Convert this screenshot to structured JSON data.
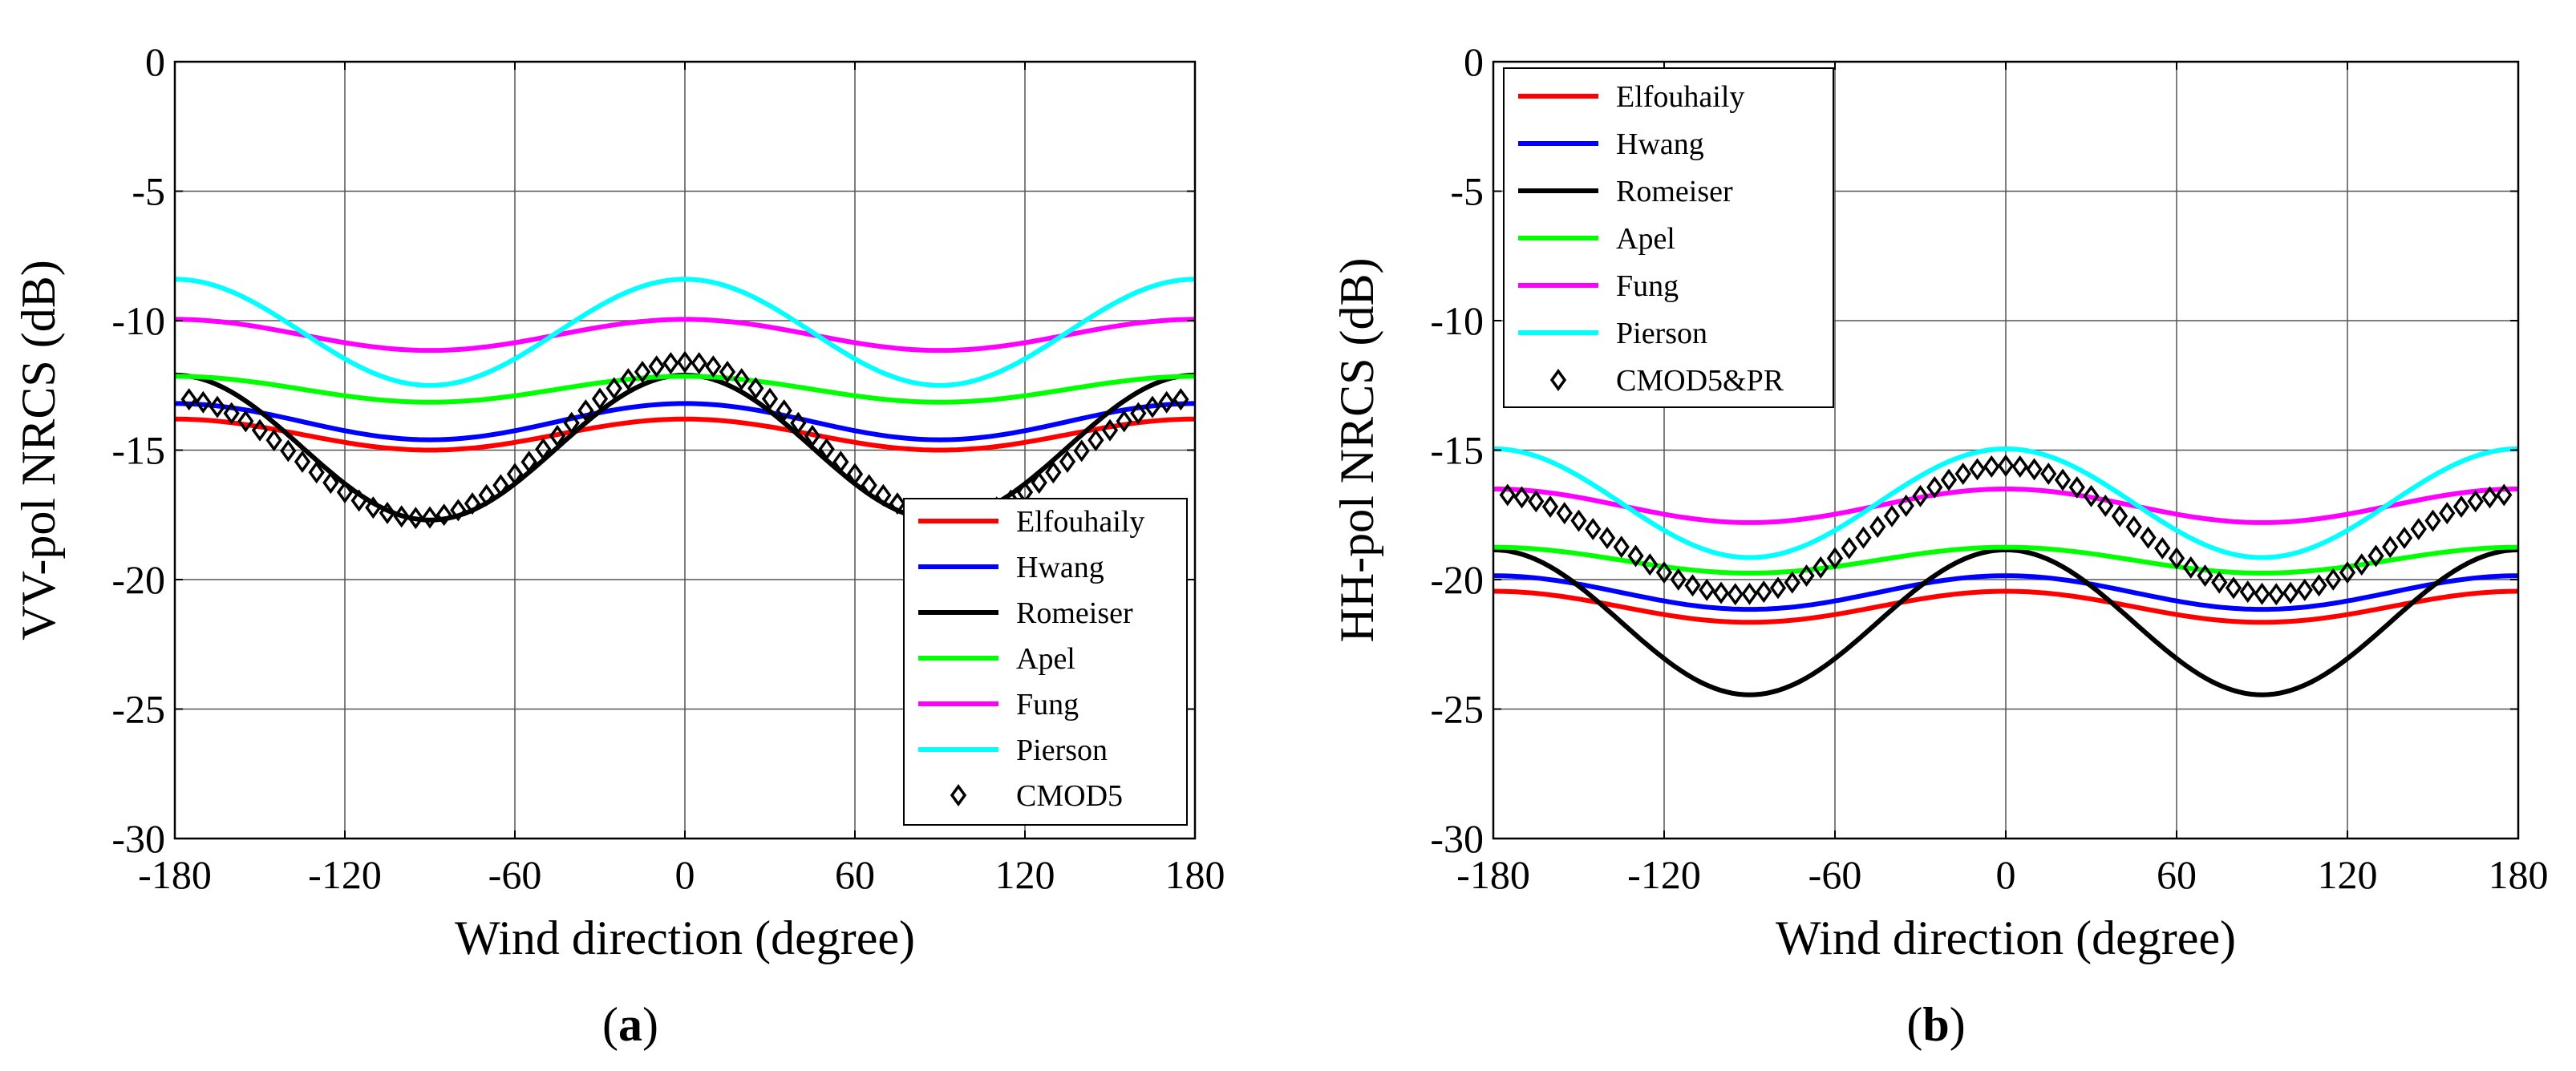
{
  "chart_data": [
    {
      "type": "line",
      "panel": "a",
      "caption_letter": "a",
      "xlabel": "Wind direction (degree)",
      "ylabel": "VV-pol NRCS (dB)",
      "xlim": [
        -180,
        180
      ],
      "ylim": [
        -30,
        0
      ],
      "xticks": [
        -180,
        -120,
        -60,
        0,
        60,
        120,
        180
      ],
      "yticks": [
        0,
        -5,
        -10,
        -15,
        -20,
        -25,
        -30
      ],
      "legend_position": "bottom-right",
      "grid": true,
      "series": [
        {
          "name": "Elfouhaily",
          "color": "#ff0000",
          "style": "line",
          "mean": -14.4,
          "a1": 0,
          "a2": 0.6
        },
        {
          "name": "Hwang",
          "color": "#0000ff",
          "style": "line",
          "mean": -13.9,
          "a1": 0,
          "a2": 0.7
        },
        {
          "name": "Romeiser",
          "color": "#000000",
          "style": "line",
          "mean": -14.9,
          "a1": 0,
          "a2": 2.8
        },
        {
          "name": "Apel",
          "color": "#00ff00",
          "style": "line",
          "mean": -12.65,
          "a1": 0,
          "a2": 0.5
        },
        {
          "name": "Fung",
          "color": "#ff00ff",
          "style": "line",
          "mean": -10.55,
          "a1": 0,
          "a2": 0.6
        },
        {
          "name": "Pierson",
          "color": "#00ffff",
          "style": "line",
          "mean": -10.45,
          "a1": 0,
          "a2": 2.05
        },
        {
          "name": "CMOD5",
          "color": "#000000",
          "style": "marker",
          "mean": -14.95,
          "a1": 0.7,
          "a2": 2.65
        }
      ]
    },
    {
      "type": "line",
      "panel": "b",
      "caption_letter": "b",
      "xlabel": "Wind direction (degree)",
      "ylabel": "HH-pol NRCS (dB)",
      "xlim": [
        -180,
        180
      ],
      "ylim": [
        -30,
        0
      ],
      "xticks": [
        -180,
        -120,
        -60,
        0,
        60,
        120,
        180
      ],
      "yticks": [
        0,
        -5,
        -10,
        -15,
        -20,
        -25,
        -30
      ],
      "legend_position": "top-left",
      "grid": true,
      "series": [
        {
          "name": "Elfouhaily",
          "color": "#ff0000",
          "style": "line",
          "mean": -21.05,
          "a1": 0,
          "a2": 0.6
        },
        {
          "name": "Hwang",
          "color": "#0000ff",
          "style": "line",
          "mean": -20.5,
          "a1": 0,
          "a2": 0.65
        },
        {
          "name": "Romeiser",
          "color": "#000000",
          "style": "line",
          "mean": -21.65,
          "a1": 0,
          "a2": 2.8
        },
        {
          "name": "Apel",
          "color": "#00ff00",
          "style": "line",
          "mean": -19.25,
          "a1": 0,
          "a2": 0.5
        },
        {
          "name": "Fung",
          "color": "#ff00ff",
          "style": "line",
          "mean": -17.15,
          "a1": 0,
          "a2": 0.65
        },
        {
          "name": "Pierson",
          "color": "#00ffff",
          "style": "line",
          "mean": -17.05,
          "a1": 0,
          "a2": 2.1
        },
        {
          "name": "CMOD5&PR",
          "color": "#000000",
          "style": "marker",
          "mean": -18.35,
          "a1": 0.55,
          "a2": 2.2
        }
      ]
    }
  ]
}
